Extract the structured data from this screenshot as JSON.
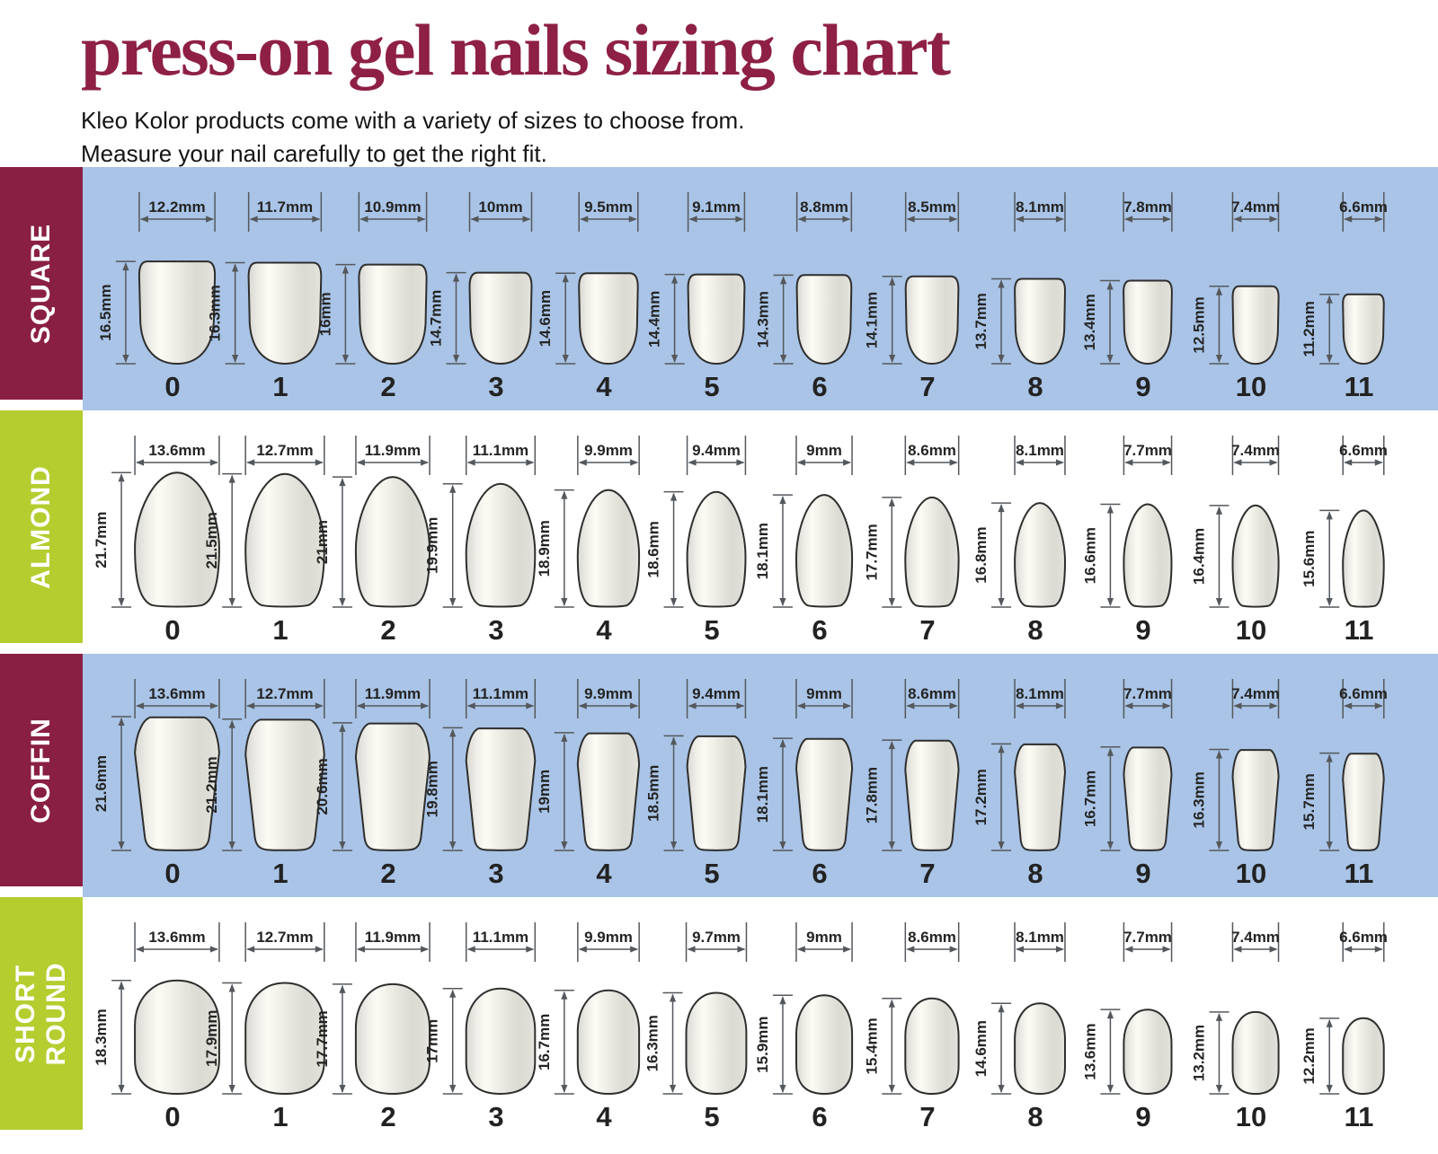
{
  "header": {
    "title": "press-on gel nails sizing chart",
    "subtitle_line1": "Kleo Kolor products come with a variety of sizes to choose from.",
    "subtitle_line2": "Measure your nail carefully to get the right fit."
  },
  "colors": {
    "maroon": "#8a1f44",
    "green": "#b5cd2f",
    "blue_band": "#a9c4e6",
    "nail_outline": "#2e2e2e",
    "dimension_lines": "#54585c",
    "number_text": "#222222"
  },
  "unit": "mm",
  "rows": [
    {
      "label": "SQUARE",
      "shape": "square",
      "theme": "maroon",
      "band": "blue",
      "sizes": [
        {
          "num": "0",
          "w": "12.2mm",
          "h": "16.5mm"
        },
        {
          "num": "1",
          "w": "11.7mm",
          "h": "16.3mm"
        },
        {
          "num": "2",
          "w": "10.9mm",
          "h": "16mm"
        },
        {
          "num": "3",
          "w": "10mm",
          "h": "14.7mm"
        },
        {
          "num": "4",
          "w": "9.5mm",
          "h": "14.6mm"
        },
        {
          "num": "5",
          "w": "9.1mm",
          "h": "14.4mm"
        },
        {
          "num": "6",
          "w": "8.8mm",
          "h": "14.3mm"
        },
        {
          "num": "7",
          "w": "8.5mm",
          "h": "14.1mm"
        },
        {
          "num": "8",
          "w": "8.1mm",
          "h": "13.7mm"
        },
        {
          "num": "9",
          "w": "7.8mm",
          "h": "13.4mm"
        },
        {
          "num": "10",
          "w": "7.4mm",
          "h": "12.5mm"
        },
        {
          "num": "11",
          "w": "6.6mm",
          "h": "11.2mm"
        }
      ]
    },
    {
      "label": "ALMOND",
      "shape": "almond",
      "theme": "green",
      "band": "white",
      "sizes": [
        {
          "num": "0",
          "w": "13.6mm",
          "h": "21.7mm"
        },
        {
          "num": "1",
          "w": "12.7mm",
          "h": "21.5mm"
        },
        {
          "num": "2",
          "w": "11.9mm",
          "h": "21mm"
        },
        {
          "num": "3",
          "w": "11.1mm",
          "h": "19.9mm"
        },
        {
          "num": "4",
          "w": "9.9mm",
          "h": "18.9mm"
        },
        {
          "num": "5",
          "w": "9.4mm",
          "h": "18.6mm"
        },
        {
          "num": "6",
          "w": "9mm",
          "h": "18.1mm"
        },
        {
          "num": "7",
          "w": "8.6mm",
          "h": "17.7mm"
        },
        {
          "num": "8",
          "w": "8.1mm",
          "h": "16.8mm"
        },
        {
          "num": "9",
          "w": "7.7mm",
          "h": "16.6mm"
        },
        {
          "num": "10",
          "w": "7.4mm",
          "h": "16.4mm"
        },
        {
          "num": "11",
          "w": "6.6mm",
          "h": "15.6mm"
        }
      ]
    },
    {
      "label": "COFFIN",
      "shape": "coffin",
      "theme": "maroon",
      "band": "blue",
      "sizes": [
        {
          "num": "0",
          "w": "13.6mm",
          "h": "21.6mm"
        },
        {
          "num": "1",
          "w": "12.7mm",
          "h": "21.2mm"
        },
        {
          "num": "2",
          "w": "11.9mm",
          "h": "20.6mm"
        },
        {
          "num": "3",
          "w": "11.1mm",
          "h": "19.8mm"
        },
        {
          "num": "4",
          "w": "9.9mm",
          "h": "19mm"
        },
        {
          "num": "5",
          "w": "9.4mm",
          "h": "18.5mm"
        },
        {
          "num": "6",
          "w": "9mm",
          "h": "18.1mm"
        },
        {
          "num": "7",
          "w": "8.6mm",
          "h": "17.8mm"
        },
        {
          "num": "8",
          "w": "8.1mm",
          "h": "17.2mm"
        },
        {
          "num": "9",
          "w": "7.7mm",
          "h": "16.7mm"
        },
        {
          "num": "10",
          "w": "7.4mm",
          "h": "16.3mm"
        },
        {
          "num": "11",
          "w": "6.6mm",
          "h": "15.7mm"
        }
      ]
    },
    {
      "label": "SHORT\nROUND",
      "shape": "shortround",
      "theme": "green",
      "band": "white",
      "sizes": [
        {
          "num": "0",
          "w": "13.6mm",
          "h": "18.3mm"
        },
        {
          "num": "1",
          "w": "12.7mm",
          "h": "17.9mm"
        },
        {
          "num": "2",
          "w": "11.9mm",
          "h": "17.7mm"
        },
        {
          "num": "3",
          "w": "11.1mm",
          "h": "17mm"
        },
        {
          "num": "4",
          "w": "9.9mm",
          "h": "16.7mm"
        },
        {
          "num": "5",
          "w": "9.7mm",
          "h": "16.3mm"
        },
        {
          "num": "6",
          "w": "9mm",
          "h": "15.9mm"
        },
        {
          "num": "7",
          "w": "8.6mm",
          "h": "15.4mm"
        },
        {
          "num": "8",
          "w": "8.1mm",
          "h": "14.6mm"
        },
        {
          "num": "9",
          "w": "7.7mm",
          "h": "13.6mm"
        },
        {
          "num": "10",
          "w": "7.4mm",
          "h": "13.2mm"
        },
        {
          "num": "11",
          "w": "6.6mm",
          "h": "12.2mm"
        }
      ]
    }
  ]
}
